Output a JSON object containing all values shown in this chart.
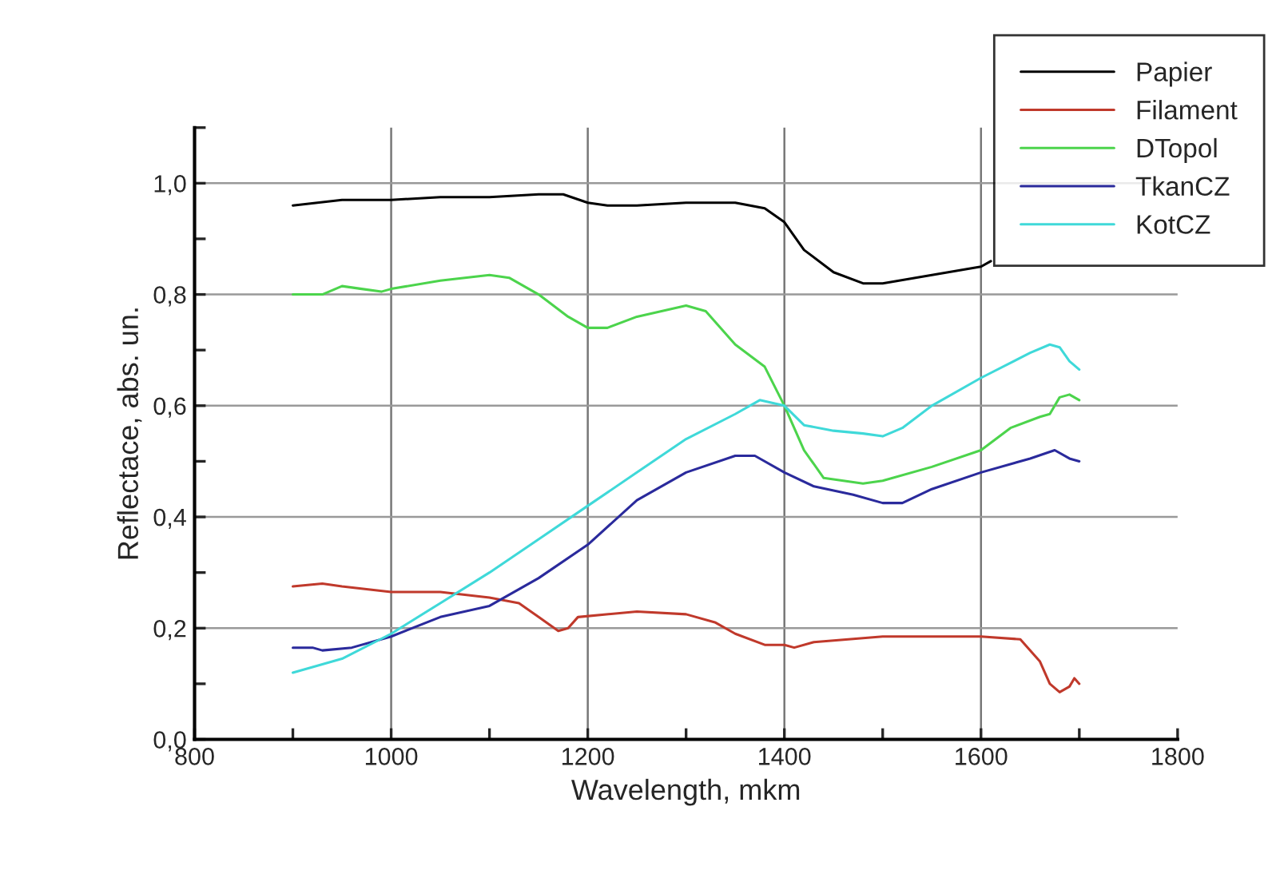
{
  "chart_data": {
    "type": "line",
    "xlabel": "Wavelength, mkm",
    "ylabel": "Reflectace, abs. un.",
    "xlim": [
      800,
      1800
    ],
    "ylim": [
      0,
      1.1
    ],
    "xticks": [
      800,
      {
        "value": 900,
        "label": null
      },
      1000,
      {
        "value": 1100,
        "label": null
      },
      1200,
      {
        "value": 1300,
        "label": null
      },
      1400,
      {
        "value": 1500,
        "label": null
      },
      1600,
      {
        "value": 1700,
        "label": null
      },
      1800
    ],
    "yticks": [
      {
        "value": 0,
        "label": "0,0"
      },
      {
        "value": 0.1,
        "label": null
      },
      {
        "value": 0.2,
        "label": "0,2"
      },
      {
        "value": 0.3,
        "label": null
      },
      {
        "value": 0.4,
        "label": "0,4"
      },
      {
        "value": 0.5,
        "label": null
      },
      {
        "value": 0.6,
        "label": "0,6"
      },
      {
        "value": 0.7,
        "label": null
      },
      {
        "value": 0.8,
        "label": "0,8"
      },
      {
        "value": 0.9,
        "label": null
      },
      {
        "value": 1.0,
        "label": "1,0"
      },
      {
        "value": 1.1,
        "label": null
      }
    ],
    "grid": true,
    "legend": "top right",
    "marker": "none",
    "line_style": "solid",
    "series": [
      {
        "name": "Papier",
        "color": "#000000",
        "x": [
          900,
          950,
          1000,
          1050,
          1100,
          1150,
          1175,
          1200,
          1220,
          1250,
          1300,
          1350,
          1380,
          1400,
          1420,
          1450,
          1480,
          1500,
          1550,
          1600,
          1610
        ],
        "values": [
          0.96,
          0.97,
          0.97,
          0.975,
          0.975,
          0.98,
          0.98,
          0.965,
          0.96,
          0.96,
          0.965,
          0.965,
          0.955,
          0.93,
          0.88,
          0.84,
          0.82,
          0.82,
          0.835,
          0.85,
          0.86
        ]
      },
      {
        "name": "Filament",
        "color": "#c0392b",
        "x": [
          900,
          930,
          950,
          1000,
          1050,
          1100,
          1130,
          1150,
          1170,
          1180,
          1190,
          1250,
          1300,
          1330,
          1350,
          1380,
          1400,
          1410,
          1430,
          1500,
          1550,
          1600,
          1640,
          1660,
          1670,
          1680,
          1690,
          1695,
          1700
        ],
        "values": [
          0.275,
          0.28,
          0.275,
          0.265,
          0.265,
          0.255,
          0.245,
          0.22,
          0.195,
          0.2,
          0.22,
          0.23,
          0.225,
          0.21,
          0.19,
          0.17,
          0.17,
          0.165,
          0.175,
          0.185,
          0.185,
          0.185,
          0.18,
          0.14,
          0.1,
          0.085,
          0.095,
          0.11,
          0.1
        ]
      },
      {
        "name": "DTopol",
        "color": "#4cd44c",
        "x": [
          900,
          930,
          950,
          970,
          990,
          1000,
          1050,
          1100,
          1120,
          1150,
          1180,
          1200,
          1220,
          1250,
          1300,
          1320,
          1350,
          1380,
          1400,
          1420,
          1440,
          1480,
          1500,
          1550,
          1600,
          1630,
          1660,
          1670,
          1680,
          1690,
          1700
        ],
        "values": [
          0.8,
          0.8,
          0.815,
          0.81,
          0.805,
          0.81,
          0.825,
          0.835,
          0.83,
          0.8,
          0.76,
          0.74,
          0.74,
          0.76,
          0.78,
          0.77,
          0.71,
          0.67,
          0.6,
          0.52,
          0.47,
          0.46,
          0.465,
          0.49,
          0.52,
          0.56,
          0.58,
          0.585,
          0.615,
          0.62,
          0.61
        ]
      },
      {
        "name": "TkanCZ",
        "color": "#2a2a9c",
        "x": [
          900,
          920,
          930,
          960,
          1000,
          1050,
          1100,
          1150,
          1200,
          1250,
          1300,
          1350,
          1370,
          1400,
          1430,
          1470,
          1500,
          1520,
          1550,
          1600,
          1650,
          1675,
          1690,
          1700
        ],
        "values": [
          0.165,
          0.165,
          0.16,
          0.165,
          0.185,
          0.22,
          0.24,
          0.29,
          0.35,
          0.43,
          0.48,
          0.51,
          0.51,
          0.48,
          0.455,
          0.44,
          0.425,
          0.425,
          0.45,
          0.48,
          0.505,
          0.52,
          0.505,
          0.5
        ]
      },
      {
        "name": "KotCZ",
        "color": "#3fd9d9",
        "x": [
          900,
          950,
          1000,
          1050,
          1100,
          1150,
          1200,
          1250,
          1300,
          1350,
          1375,
          1400,
          1420,
          1450,
          1480,
          1500,
          1520,
          1550,
          1600,
          1650,
          1670,
          1680,
          1690,
          1700
        ],
        "values": [
          0.12,
          0.145,
          0.19,
          0.245,
          0.3,
          0.36,
          0.42,
          0.48,
          0.54,
          0.585,
          0.61,
          0.6,
          0.565,
          0.555,
          0.55,
          0.545,
          0.56,
          0.6,
          0.65,
          0.695,
          0.71,
          0.705,
          0.68,
          0.665
        ]
      }
    ]
  }
}
